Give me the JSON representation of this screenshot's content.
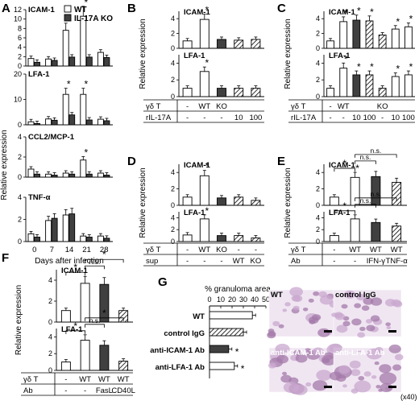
{
  "figure": {
    "ylabel": "Relative expression",
    "star": "*",
    "ns": "n.s.",
    "gd_label": "γδ T",
    "tissue_bg": "#f0e6f2",
    "tissue_dark": "#a47aaa",
    "tissue_mid": "#c9a8cf"
  },
  "legend": {
    "wt": "WT",
    "ko": "IL-17A KO",
    "wt_color": "#ffffff",
    "ko_color": "#404040",
    "hatch_color": "#000000"
  },
  "chart_data": [
    {
      "panel": "A",
      "type": "bar",
      "xlabel": "Days after infection",
      "categories": [
        "0",
        "7",
        "14",
        "21",
        "28"
      ],
      "subplots": [
        {
          "title": "ICAM-1",
          "ylim": [
            0,
            12
          ],
          "yticks": [
            0,
            2,
            4,
            6,
            8,
            10,
            12
          ],
          "series": [
            {
              "name": "WT",
              "values": [
                1.6,
                1.5,
                7.6,
                10.6,
                2.9
              ]
            },
            {
              "name": "IL-17A KO",
              "values": [
                0.8,
                1.2,
                1.9,
                1.9,
                1.8
              ]
            }
          ],
          "stars": [
            2,
            3
          ]
        },
        {
          "title": "LFA-1",
          "ylim": [
            0,
            20
          ],
          "yticks": [
            0,
            10,
            20
          ],
          "series": [
            {
              "name": "WT",
              "values": [
                1.2,
                2.3,
                12.0,
                12.0,
                2.2
              ]
            },
            {
              "name": "IL-17A KO",
              "values": [
                0.5,
                1.8,
                3.9,
                1.9,
                1.6
              ]
            }
          ],
          "stars": [
            2,
            3
          ]
        },
        {
          "title": "CCL2/MCP-1",
          "ylim": [
            0,
            4
          ],
          "yticks": [
            0,
            2,
            4
          ],
          "series": [
            {
              "name": "WT",
              "values": [
                0.8,
                0.3,
                0.4,
                1.7,
                0.4
              ]
            },
            {
              "name": "IL-17A KO",
              "values": [
                0.3,
                0.2,
                0.3,
                0.3,
                0.2
              ]
            }
          ],
          "stars": [
            3
          ]
        },
        {
          "title": "TNF-α",
          "ylim": [
            0,
            4
          ],
          "yticks": [
            0,
            2,
            4
          ],
          "series": [
            {
              "name": "WT",
              "values": [
                0.7,
                1.9,
                2.4,
                0.5,
                0.5
              ]
            },
            {
              "name": "IL-17A KO",
              "values": [
                0.4,
                2.1,
                2.5,
                0.4,
                0.3
              ]
            }
          ],
          "stars": []
        }
      ]
    },
    {
      "panel": "B",
      "type": "bar",
      "bars": [
        "white",
        "white",
        "dark",
        "hatch",
        "hatch"
      ],
      "table": [
        {
          "label": "γδ T",
          "cells": [
            "-",
            "WT",
            "KO",
            "",
            ""
          ]
        },
        {
          "label": "rIL-17A",
          "cells": [
            "-",
            "-",
            "-",
            "10",
            "100"
          ]
        }
      ],
      "subplots": [
        {
          "title": "ICAM-1",
          "ylim": [
            0,
            5
          ],
          "yticks": [
            0,
            2,
            4
          ],
          "values": [
            1.0,
            3.9,
            1.2,
            1.1,
            1.2
          ],
          "stars": [
            1
          ]
        },
        {
          "title": "LFA-1",
          "ylim": [
            0,
            5
          ],
          "yticks": [
            0,
            2,
            4
          ],
          "values": [
            1.0,
            3.0,
            1.0,
            1.0,
            1.0
          ],
          "stars": [
            1
          ]
        }
      ]
    },
    {
      "panel": "C",
      "type": "bar",
      "bars": [
        "white",
        "white",
        "dark",
        "hatch",
        "hatch",
        "white",
        "white"
      ],
      "table": [
        {
          "label": "γδ T",
          "cells": [
            "-",
            "WT",
            "",
            "",
            "KO",
            "",
            ""
          ]
        },
        {
          "label": "rIL-17A",
          "cells": [
            "-",
            "-",
            "10",
            "100",
            "-",
            "10",
            "100"
          ]
        }
      ],
      "subplots": [
        {
          "title": "ICAM-1",
          "ylim": [
            0,
            5
          ],
          "yticks": [
            0,
            2,
            4
          ],
          "values": [
            1.0,
            3.6,
            3.8,
            3.7,
            1.8,
            2.6,
            2.9
          ],
          "stars": [
            1,
            2,
            3,
            5,
            6
          ]
        },
        {
          "title": "LFA-1",
          "ylim": [
            0,
            5
          ],
          "yticks": [
            0,
            2,
            4
          ],
          "values": [
            1.0,
            3.4,
            2.6,
            2.6,
            1.0,
            2.4,
            2.6
          ],
          "stars": [
            1,
            2,
            3,
            5,
            6
          ]
        }
      ]
    },
    {
      "panel": "D",
      "type": "bar",
      "bars": [
        "white",
        "white",
        "dark",
        "hatch",
        "hatch"
      ],
      "table": [
        {
          "label": "γδ T",
          "cells": [
            "-",
            "WT",
            "KO",
            "-",
            "-"
          ]
        },
        {
          "label": "sup",
          "cells": [
            "-",
            "-",
            "-",
            "WT",
            "KO"
          ]
        }
      ],
      "subplots": [
        {
          "title": "ICAM-1",
          "ylim": [
            0,
            5
          ],
          "yticks": [
            0,
            2,
            4
          ],
          "values": [
            1.0,
            3.6,
            0.9,
            1.0,
            0.6
          ],
          "stars": [
            1
          ]
        },
        {
          "title": "LFA-1",
          "ylim": [
            0,
            5
          ],
          "yticks": [
            0,
            2,
            4
          ],
          "values": [
            1.1,
            3.8,
            1.0,
            1.0,
            0.6
          ],
          "stars": [
            1
          ]
        }
      ]
    },
    {
      "panel": "E",
      "type": "bar",
      "bars": [
        "white",
        "white",
        "dark",
        "hatch"
      ],
      "table": [
        {
          "label": "γδ T",
          "cells": [
            "-",
            "WT",
            "WT",
            "WT"
          ]
        },
        {
          "label": "Ab",
          "cells": [
            "-",
            "-",
            "IFN-γ",
            "TNF-α"
          ]
        }
      ],
      "subplots": [
        {
          "title": "ICAM-1",
          "ylim": [
            0,
            5
          ],
          "yticks": [
            0,
            2,
            4
          ],
          "values": [
            1.0,
            3.4,
            3.5,
            2.8
          ],
          "stars": [
            1
          ],
          "brackets": [
            {
              "from": 0,
              "to": 1,
              "label": "*"
            },
            {
              "from": 1,
              "to": 2,
              "label": "n.s."
            },
            {
              "from": 1,
              "to": 3,
              "label": "n.s."
            }
          ]
        },
        {
          "title": "LFA-1",
          "ylim": [
            0,
            5
          ],
          "yticks": [
            0,
            2,
            4
          ],
          "values": [
            1.0,
            3.8,
            3.2,
            2.6
          ],
          "stars": [],
          "brackets": [
            {
              "from": 0,
              "to": 1,
              "label": "*"
            },
            {
              "from": 1,
              "to": 2,
              "label": "n.s."
            },
            {
              "from": 1,
              "to": 3,
              "label": "n.s."
            }
          ]
        }
      ]
    },
    {
      "panel": "F",
      "type": "bar",
      "bars": [
        "white",
        "white",
        "dark",
        "hatch"
      ],
      "table": [
        {
          "label": "γδ T",
          "cells": [
            "-",
            "WT",
            "WT",
            "WT"
          ]
        },
        {
          "label": "Ab",
          "cells": [
            "-",
            "-",
            "FasL",
            "CD40L"
          ]
        }
      ],
      "subplots": [
        {
          "title": "ICAM-1",
          "ylim": [
            0,
            5
          ],
          "yticks": [
            0,
            2,
            4
          ],
          "values": [
            1.1,
            3.7,
            3.6,
            1.1
          ],
          "stars": [],
          "brackets": [
            {
              "from": 0,
              "to": 1,
              "label": "*"
            },
            {
              "from": 1,
              "to": 2,
              "label": "n.s."
            },
            {
              "from": 1,
              "to": 3,
              "label": "*"
            }
          ]
        },
        {
          "title": "LFA-1",
          "ylim": [
            0,
            5
          ],
          "yticks": [
            0,
            2,
            4
          ],
          "values": [
            1.0,
            3.6,
            3.0,
            1.1
          ],
          "stars": [],
          "brackets": [
            {
              "from": 0,
              "to": 1,
              "label": "*"
            },
            {
              "from": 1,
              "to": 2,
              "label": "n.s."
            },
            {
              "from": 1,
              "to": 3,
              "label": "*"
            }
          ]
        }
      ]
    },
    {
      "panel": "G",
      "type": "bar",
      "orientation": "horizontal",
      "xlabel": "% granuloma area",
      "xlim": [
        0,
        50
      ],
      "xticks": [
        0,
        10,
        20,
        30,
        40,
        50
      ],
      "categories": [
        "WT",
        "control IgG",
        "anti-ICAM-1 Ab",
        "anti-LFA-1 Ab"
      ],
      "values": [
        38,
        30,
        17,
        22
      ],
      "fills": [
        "white",
        "hatch",
        "dark",
        "white"
      ],
      "stars": [
        2,
        3
      ],
      "images": [
        "WT",
        "control IgG",
        "anti-ICAM-1 Ab",
        "anti-LFA-1 Ab"
      ],
      "magnification": "(x40)"
    }
  ]
}
